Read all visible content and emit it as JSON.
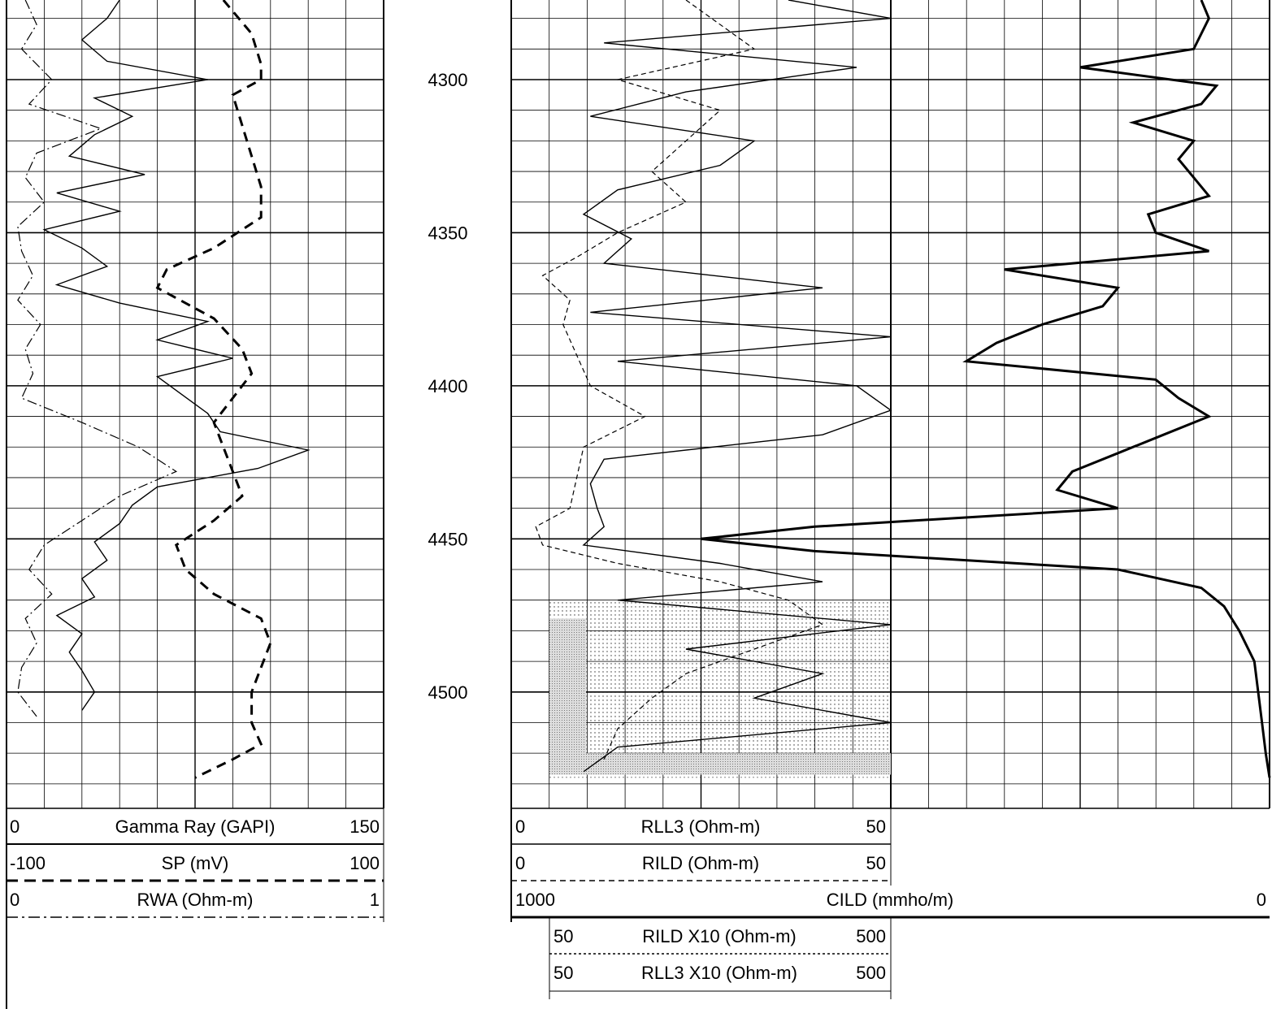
{
  "chart_data": {
    "type": "line",
    "title": "",
    "depth_axis": {
      "ticks": [
        4300,
        4350,
        4400,
        4450,
        4500
      ],
      "range": [
        4274,
        4538
      ]
    },
    "tracks": [
      {
        "name": "track-1",
        "grid": "linear",
        "grid_divisions": 10,
        "curves": [
          {
            "name": "Gamma Ray (GAPI)",
            "min": "0",
            "max": "150",
            "style": "solid",
            "range": [
              0,
              150
            ],
            "depths": [
              4274,
              4280,
              4287,
              4294,
              4300,
              4306,
              4312,
              4318,
              4325,
              4331,
              4337,
              4343,
              4349,
              4355,
              4361,
              4367,
              4373,
              4379,
              4385,
              4391,
              4397,
              4403,
              4409,
              4415,
              4421,
              4427,
              4433,
              4439,
              4445,
              4451,
              4457,
              4463,
              4469,
              4475,
              4481,
              4487,
              4493,
              4500,
              4506
            ],
            "values": [
              45,
              40,
              30,
              40,
              80,
              35,
              50,
              35,
              25,
              55,
              20,
              45,
              15,
              30,
              40,
              20,
              45,
              80,
              60,
              90,
              60,
              70,
              80,
              85,
              120,
              100,
              60,
              50,
              45,
              35,
              40,
              30,
              35,
              20,
              30,
              25,
              30,
              35,
              30
            ]
          },
          {
            "name": "SP (mV)",
            "min": "-100",
            "max": "100",
            "style": "dashed",
            "range": [
              -100,
              100
            ],
            "depths": [
              4274,
              4285,
              4295,
              4300,
              4305,
              4315,
              4325,
              4335,
              4345,
              4355,
              4362,
              4368,
              4378,
              4388,
              4396,
              4404,
              4412,
              4420,
              4428,
              4436,
              4444,
              4452,
              4460,
              4468,
              4476,
              4484,
              4492,
              4500,
              4510,
              4517,
              4522,
              4528
            ],
            "values": [
              15,
              30,
              35,
              35,
              20,
              25,
              30,
              35,
              35,
              10,
              -15,
              -20,
              10,
              25,
              30,
              20,
              10,
              15,
              20,
              25,
              10,
              -10,
              -5,
              10,
              35,
              40,
              35,
              30,
              30,
              35,
              20,
              0
            ]
          },
          {
            "name": "RWA (Ohm-m)",
            "min": "0",
            "max": "1",
            "style": "dashdot",
            "range": [
              0,
              1
            ],
            "depths": [
              4274,
              4282,
              4290,
              4300,
              4308,
              4316,
              4324,
              4332,
              4340,
              4348,
              4356,
              4364,
              4372,
              4380,
              4388,
              4396,
              4404,
              4412,
              4420,
              4428,
              4436,
              4444,
              4452,
              4460,
              4468,
              4476,
              4484,
              4492,
              4500,
              4508
            ],
            "values": [
              0.05,
              0.08,
              0.04,
              0.12,
              0.06,
              0.25,
              0.08,
              0.05,
              0.1,
              0.03,
              0.04,
              0.07,
              0.03,
              0.09,
              0.05,
              0.07,
              0.04,
              0.2,
              0.35,
              0.45,
              0.3,
              0.2,
              0.1,
              0.06,
              0.12,
              0.05,
              0.08,
              0.04,
              0.03,
              0.08
            ]
          }
        ]
      },
      {
        "name": "track-2",
        "grid": "linear",
        "grid_divisions": 10,
        "curves": [
          {
            "name": "RLL3 (Ohm-m)",
            "min": "0",
            "max": "50",
            "style": "solid",
            "range": [
              0,
              50
            ],
            "depths": [
              4274,
              4280,
              4288,
              4296,
              4304,
              4312,
              4320,
              4328,
              4336,
              4344,
              4352,
              4360,
              4368,
              4376,
              4384,
              4392,
              4400,
              4408,
              4416,
              4424,
              4432,
              4440,
              4446,
              4452,
              4458,
              4464,
              4470,
              4478,
              4486,
              4494,
              4502,
              4510,
              4518,
              4526
            ],
            "values": [
              35,
              50,
              8,
              45,
              20,
              6,
              30,
              25,
              10,
              5,
              12,
              8,
              40,
              6,
              50,
              10,
              45,
              50,
              40,
              8,
              6,
              7,
              8,
              5,
              25,
              40,
              10,
              50,
              20,
              40,
              30,
              50,
              10,
              5
            ]
          },
          {
            "name": "RILD (Ohm-m)",
            "min": "0",
            "max": "50",
            "style": "shortdash",
            "range": [
              0,
              50
            ],
            "depths": [
              4274,
              4282,
              4290,
              4300,
              4310,
              4320,
              4330,
              4340,
              4350,
              4358,
              4364,
              4372,
              4380,
              4390,
              4400,
              4410,
              4420,
              4430,
              4440,
              4446,
              4452,
              4458,
              4464,
              4470,
              4478,
              4486,
              4494,
              4502,
              4512,
              4522
            ],
            "values": [
              20,
              25,
              30,
              10,
              25,
              20,
              15,
              20,
              10,
              4,
              -1,
              3,
              2,
              4,
              6,
              14,
              5,
              4,
              3,
              -2,
              -1,
              10,
              25,
              35,
              40,
              30,
              20,
              15,
              10,
              8
            ]
          },
          {
            "name": "CILD (mmho/m)",
            "min": "1000",
            "max": "0",
            "style": "thick",
            "range": [
              1000,
              0
            ],
            "depths": [
              4274,
              4280,
              4290,
              4296,
              4302,
              4308,
              4314,
              4320,
              4326,
              4332,
              4338,
              4344,
              4350,
              4356,
              4362,
              4368,
              4374,
              4380,
              4386,
              4392,
              4398,
              4404,
              4410,
              4416,
              4422,
              4428,
              4434,
              4440,
              4446,
              4450,
              4454,
              4460,
              4466,
              4472,
              4480,
              4490,
              4500,
              4510,
              4520,
              4528
            ],
            "values": [
              90,
              80,
              100,
              250,
              70,
              90,
              180,
              100,
              120,
              100,
              80,
              160,
              150,
              80,
              350,
              200,
              220,
              300,
              360,
              400,
              150,
              120,
              80,
              140,
              200,
              260,
              280,
              200,
              600,
              750,
              600,
              200,
              90,
              60,
              40,
              20,
              15,
              10,
              5,
              0
            ]
          },
          {
            "name": "RILD X10 (Ohm-m)",
            "min": "50",
            "max": "500",
            "style": "dotted",
            "range": [
              50,
              500
            ]
          },
          {
            "name": "RLL3 X10 (Ohm-m)",
            "min": "50",
            "max": "500",
            "style": "solid",
            "range": [
              50,
              500
            ]
          }
        ]
      }
    ],
    "legend_placement": "bottom"
  }
}
